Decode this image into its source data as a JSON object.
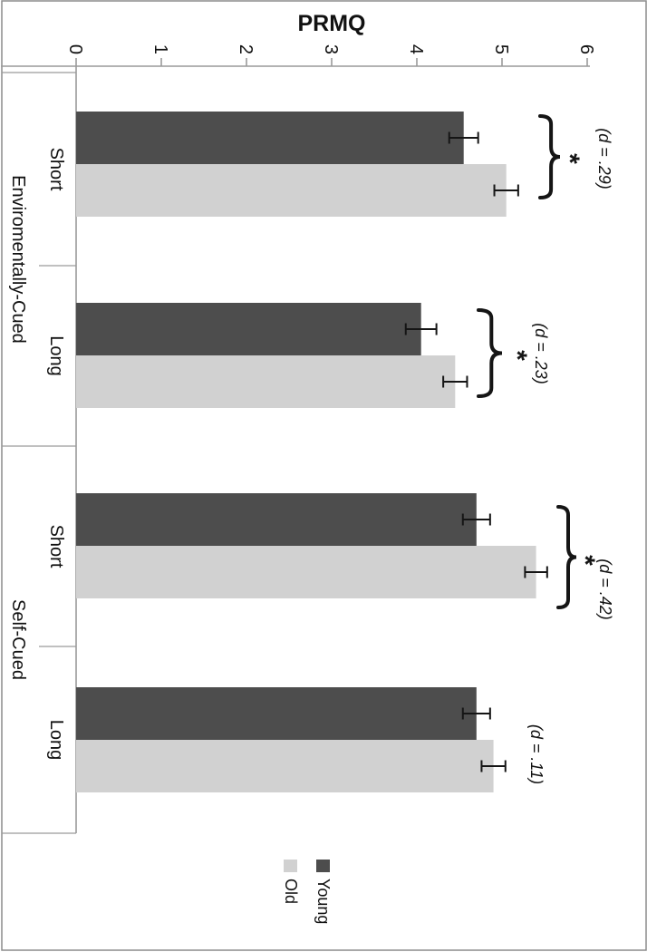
{
  "page": {
    "background": "#ffffff",
    "frame_color": "#8c8c8c",
    "rotation_deg": 90
  },
  "chart_data": {
    "type": "bar",
    "title": "PRMQ",
    "ylabel": "PRMQ",
    "ylim": [
      0,
      6
    ],
    "yticks": [
      0,
      1,
      2,
      3,
      4,
      5,
      6
    ],
    "grid": false,
    "category_groups": [
      {
        "label": "Enviromentally-Cued",
        "categories": [
          "Short",
          "Long"
        ]
      },
      {
        "label": "Self-Cued",
        "categories": [
          "Short",
          "Long"
        ]
      }
    ],
    "categories": [
      "Short",
      "Long",
      "Short",
      "Long"
    ],
    "series": [
      {
        "name": "Young",
        "color": "#4d4d4d",
        "values": [
          4.55,
          4.05,
          4.7,
          4.7
        ],
        "errors": [
          0.17,
          0.18,
          0.16,
          0.16
        ]
      },
      {
        "name": "Old",
        "color": "#d1d1d1",
        "values": [
          5.05,
          4.45,
          5.4,
          4.9
        ],
        "errors": [
          0.14,
          0.14,
          0.13,
          0.14
        ]
      }
    ],
    "annotations": [
      {
        "pair": 0,
        "significant": true,
        "star": "*",
        "label": "(d = .29)"
      },
      {
        "pair": 1,
        "significant": true,
        "star": "*",
        "label": "(d = .23)"
      },
      {
        "pair": 2,
        "significant": true,
        "star": "*",
        "label": "(d = .42)"
      },
      {
        "pair": 3,
        "significant": false,
        "star": "",
        "label": "(d = .11)"
      }
    ],
    "legend": {
      "position": "right",
      "items": [
        {
          "label": "Young",
          "color": "#4d4d4d"
        },
        {
          "label": "Old",
          "color": "#d1d1d1"
        }
      ]
    },
    "axis_color": "#9a9a9a",
    "ink_color": "#151515"
  }
}
